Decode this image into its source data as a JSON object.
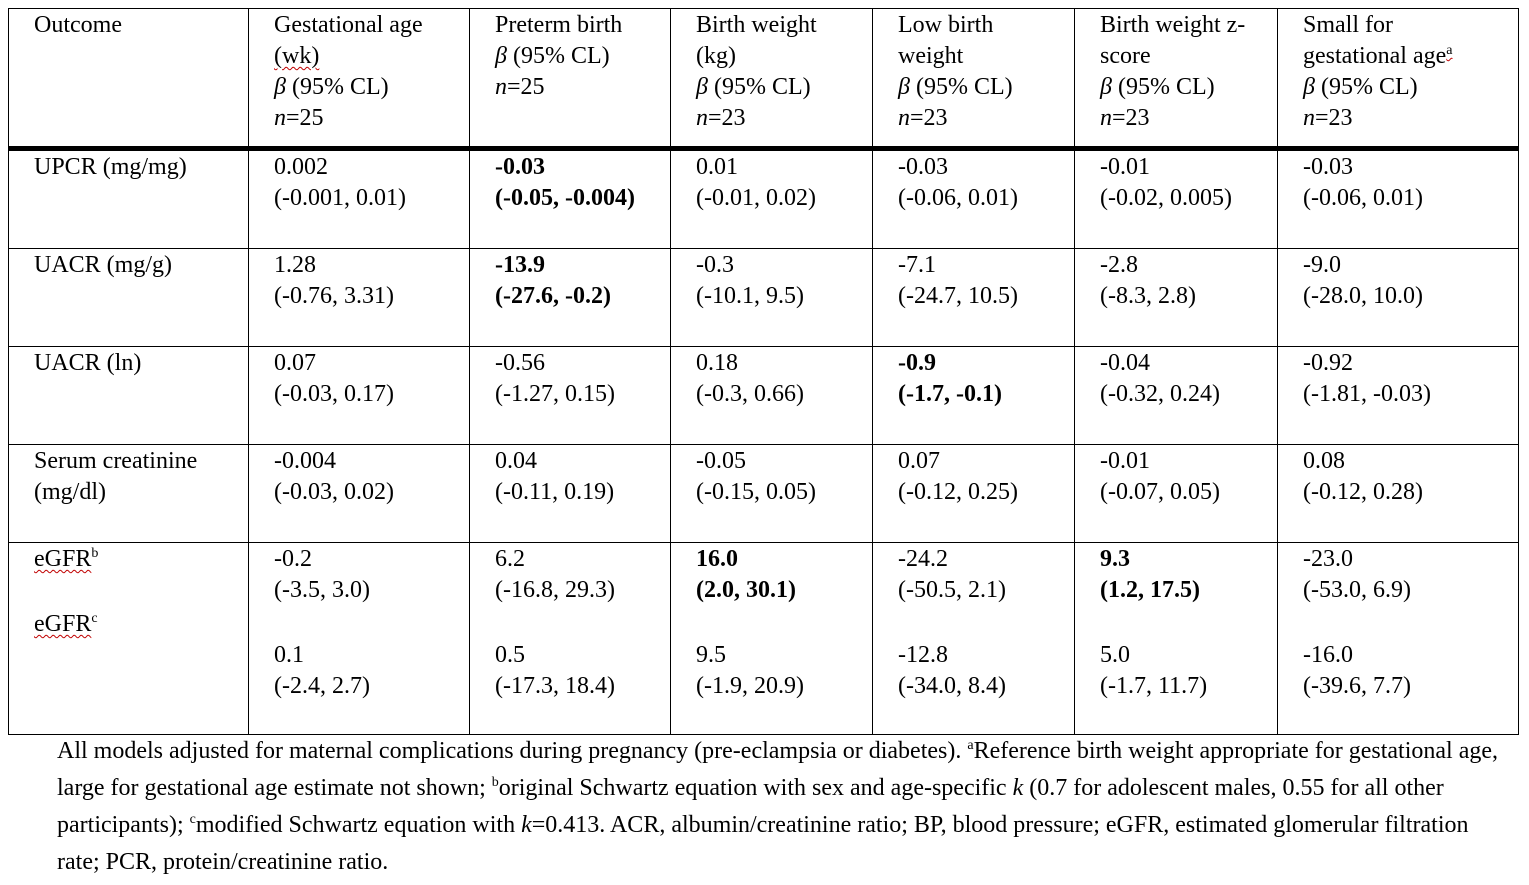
{
  "header": {
    "outcome": "Outcome",
    "beta": "β",
    "ci": " (95% CL)",
    "cols": [
      {
        "l1": "Gestational age",
        "l2": "(wk)",
        "n": "n",
        "nval": "=25"
      },
      {
        "l1": "Preterm birth",
        "n": "n",
        "nval": "=25"
      },
      {
        "l1": "Birth weight",
        "l2": "(kg)",
        "n": "n",
        "nval": "=23"
      },
      {
        "l1": "Low birth",
        "l2": "weight",
        "n": "n",
        "nval": "=23"
      },
      {
        "l1": "Birth weight z-",
        "l2": "score",
        "n": "n",
        "nval": "=23"
      },
      {
        "l1": "Small for",
        "l2": "gestational age",
        "sup": "a",
        "n": "n",
        "nval": "=23"
      }
    ]
  },
  "rows": [
    {
      "label": "UPCR (mg/mg)",
      "cells": [
        {
          "est": "0.002",
          "ci": "(-0.001, 0.01)"
        },
        {
          "est": "-0.03",
          "ci": "(-0.05, -0.004)",
          "bold": true
        },
        {
          "est": "0.01",
          "ci": "(-0.01, 0.02)"
        },
        {
          "est": "-0.03",
          "ci": "(-0.06, 0.01)"
        },
        {
          "est": "-0.01",
          "ci": "(-0.02, 0.005)"
        },
        {
          "est": "-0.03",
          "ci": "(-0.06, 0.01)"
        }
      ]
    },
    {
      "label": "UACR (mg/g)",
      "cells": [
        {
          "est": "1.28",
          "ci": "(-0.76, 3.31)"
        },
        {
          "est": "-13.9",
          "ci": "(-27.6, -0.2)",
          "bold": true
        },
        {
          "est": "-0.3",
          "ci": "(-10.1, 9.5)"
        },
        {
          "est": "-7.1",
          "ci": "(-24.7, 10.5)"
        },
        {
          "est": "-2.8",
          "ci": "(-8.3, 2.8)"
        },
        {
          "est": "-9.0",
          "ci": "(-28.0, 10.0)"
        }
      ]
    },
    {
      "label": "UACR (ln)",
      "cells": [
        {
          "est": "0.07",
          "ci": "(-0.03, 0.17)"
        },
        {
          "est": "-0.56",
          "ci": "(-1.27, 0.15)"
        },
        {
          "est": "0.18",
          "ci": "(-0.3, 0.66)"
        },
        {
          "est": "-0.9",
          "ci": "(-1.7, -0.1)",
          "bold": true
        },
        {
          "est": "-0.04",
          "ci": "(-0.32, 0.24)"
        },
        {
          "est": "-0.92",
          "ci": "(-1.81, -0.03)"
        }
      ]
    },
    {
      "label_l1": "Serum creatinine",
      "label_l2": "(mg/dl)",
      "cells": [
        {
          "est": "-0.004",
          "ci": "(-0.03, 0.02)"
        },
        {
          "est": "0.04",
          "ci": "(-0.11, 0.19)"
        },
        {
          "est": "-0.05",
          "ci": "(-0.15, 0.05)"
        },
        {
          "est": "0.07",
          "ci": "(-0.12, 0.25)"
        },
        {
          "est": "-0.01",
          "ci": "(-0.07, 0.05)"
        },
        {
          "est": "0.08",
          "ci": "(-0.12, 0.28)"
        }
      ]
    },
    {
      "label_a": "eGFR",
      "sup_a": "b",
      "label_b": "eGFR",
      "sup_b": "c",
      "cells_a": [
        {
          "est": "-0.2",
          "ci": "(-3.5, 3.0)"
        },
        {
          "est": "6.2",
          "ci": "(-16.8, 29.3)"
        },
        {
          "est": "16.0",
          "ci": "(2.0, 30.1)",
          "bold": true
        },
        {
          "est": "-24.2",
          "ci": "(-50.5, 2.1)"
        },
        {
          "est": "9.3",
          "ci": "(1.2, 17.5)",
          "bold": true
        },
        {
          "est": "-23.0",
          "ci": "(-53.0, 6.9)"
        }
      ],
      "cells_b": [
        {
          "est": "0.1",
          "ci": "(-2.4, 2.7)"
        },
        {
          "est": "0.5",
          "ci": "(-17.3, 18.4)"
        },
        {
          "est": "9.5",
          "ci": "(-1.9, 20.9)"
        },
        {
          "est": "-12.8",
          "ci": "(-34.0, 8.4)"
        },
        {
          "est": "5.0",
          "ci": "(-1.7, 11.7)"
        },
        {
          "est": "-16.0",
          "ci": "(-39.6, 7.7)"
        }
      ]
    }
  ],
  "footnote": {
    "p1": "All models adjusted for maternal complications during pregnancy (pre-eclampsia or diabetes). ",
    "sup_a": "a",
    "p2": "Reference birth weight appropriate for gestational age, large for gestational age estimate not shown; ",
    "sup_b": "b",
    "p3": "original Schwartz equation with sex and age-specific ",
    "k1": "k",
    "p4": " (0.7 for adolescent males, 0.55 for all other participants); ",
    "sup_c": "c",
    "p5": "modified Schwartz equation with ",
    "k2": "k",
    "p6": "=0.413. ACR, albumin/creatinine ratio; BP, blood pressure; eGFR, estimated glomerular filtration rate; PCR, protein/creatinine ratio."
  }
}
